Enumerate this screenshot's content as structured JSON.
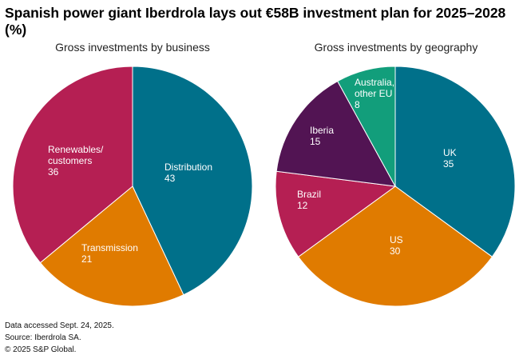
{
  "title": "Spanish power giant Iberdrola lays out €58B investment plan for 2025–2028 (%)",
  "footer": {
    "line1": "Data accessed Sept. 24, 2025.",
    "line2": "Source: Iberdrola SA.",
    "line3": "© 2025 S&P Global."
  },
  "chart_data": [
    {
      "type": "pie",
      "title": "Gross investments by business",
      "slices": [
        {
          "label": "Distribution",
          "value": 43,
          "color": "#00708a"
        },
        {
          "label": "Transmission",
          "value": 21,
          "color": "#e07b00"
        },
        {
          "label": "Renewables/ customers",
          "value": 36,
          "color": "#b51f53"
        }
      ]
    },
    {
      "type": "pie",
      "title": "Gross investments by geography",
      "slices": [
        {
          "label": "UK",
          "value": 35,
          "color": "#00708a"
        },
        {
          "label": "US",
          "value": 30,
          "color": "#e07b00"
        },
        {
          "label": "Brazil",
          "value": 12,
          "color": "#b51f53"
        },
        {
          "label": "Iberia",
          "value": 15,
          "color": "#521453"
        },
        {
          "label": "Australia, other EU",
          "value": 8,
          "color": "#129e7b"
        }
      ]
    }
  ]
}
